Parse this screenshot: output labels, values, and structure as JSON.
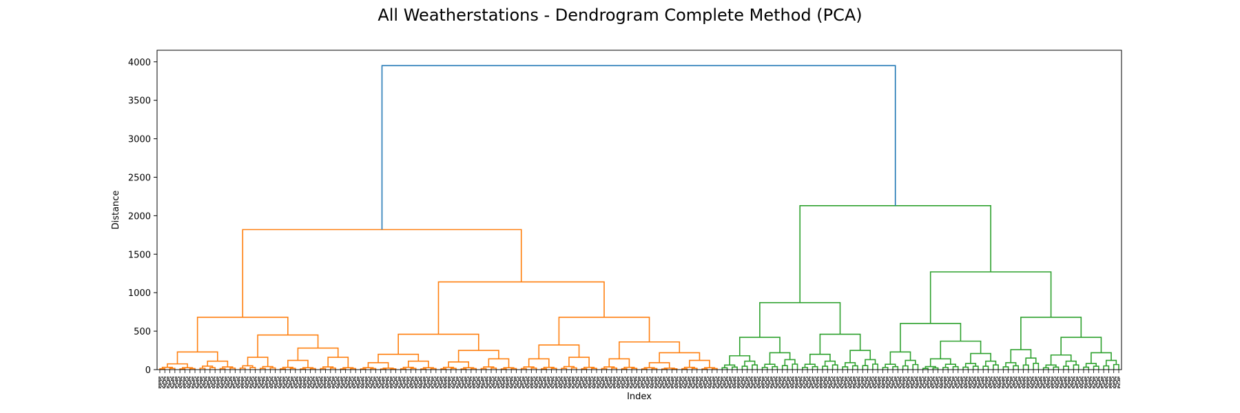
{
  "chart_data": {
    "type": "dendrogram",
    "title": "All Weatherstations - Dendrogram Complete Method (PCA)",
    "xlabel": "Index",
    "ylabel": "Distance",
    "ylim": [
      0,
      4150
    ],
    "yticks": [
      0,
      500,
      1000,
      1500,
      2000,
      2500,
      3000,
      3500,
      4000
    ],
    "grid": false,
    "legend": "none",
    "colors": {
      "root": "#1f77b4",
      "cluster1": "#ff7f0e",
      "cluster2": "#2ca02c"
    },
    "clusters": [
      {
        "name": "cluster1",
        "color": "#ff7f0e",
        "height": 1820,
        "children": [
          {
            "height": 680,
            "children": [
              {
                "height": 230,
                "children": [
                  {
                    "height": 75,
                    "children": [
                      {
                        "height": 30
                      },
                      {
                        "height": 25
                      }
                    ]
                  },
                  {
                    "height": 110,
                    "children": [
                      {
                        "height": 45
                      },
                      {
                        "height": 35
                      }
                    ]
                  }
                ]
              },
              {
                "height": 450,
                "children": [
                  {
                    "height": 160,
                    "children": [
                      {
                        "height": 50
                      },
                      {
                        "height": 40
                      }
                    ]
                  },
                  {
                    "height": 280,
                    "children": [
                      {
                        "height": 120,
                        "children": [
                          {
                            "height": 30
                          },
                          {
                            "height": 25
                          }
                        ]
                      },
                      {
                        "height": 160,
                        "children": [
                          {
                            "height": 35
                          },
                          {
                            "height": 25
                          }
                        ]
                      }
                    ]
                  }
                ]
              }
            ]
          },
          {
            "height": 1140,
            "children": [
              {
                "height": 460,
                "children": [
                  {
                    "height": 200,
                    "children": [
                      {
                        "height": 90,
                        "children": [
                          {
                            "height": 25
                          },
                          {
                            "height": 20
                          }
                        ]
                      },
                      {
                        "height": 110,
                        "children": [
                          {
                            "height": 30
                          },
                          {
                            "height": 25
                          }
                        ]
                      }
                    ]
                  },
                  {
                    "height": 250,
                    "children": [
                      {
                        "height": 100,
                        "children": [
                          {
                            "height": 30
                          },
                          {
                            "height": 25
                          }
                        ]
                      },
                      {
                        "height": 140,
                        "children": [
                          {
                            "height": 35
                          },
                          {
                            "height": 25
                          }
                        ]
                      }
                    ]
                  }
                ]
              },
              {
                "height": 680,
                "children": [
                  {
                    "height": 320,
                    "children": [
                      {
                        "height": 140,
                        "children": [
                          {
                            "height": 35
                          },
                          {
                            "height": 30
                          }
                        ]
                      },
                      {
                        "height": 160,
                        "children": [
                          {
                            "height": 40
                          },
                          {
                            "height": 30
                          }
                        ]
                      }
                    ]
                  },
                  {
                    "height": 360,
                    "children": [
                      {
                        "height": 140,
                        "children": [
                          {
                            "height": 35
                          },
                          {
                            "height": 30
                          }
                        ]
                      },
                      {
                        "height": 220,
                        "children": [
                          {
                            "height": 90,
                            "children": [
                              {
                                "height": 25
                              },
                              {
                                "height": 20
                              }
                            ]
                          },
                          {
                            "height": 120,
                            "children": [
                              {
                                "height": 30
                              },
                              {
                                "height": 25
                              }
                            ]
                          }
                        ]
                      }
                    ]
                  }
                ]
              }
            ]
          }
        ]
      },
      {
        "name": "cluster2",
        "color": "#2ca02c",
        "height": 2130,
        "children": [
          {
            "height": 870,
            "children": [
              {
                "height": 420,
                "children": [
                  {
                    "height": 180,
                    "children": [
                      {
                        "height": 60
                      },
                      {
                        "height": 110
                      }
                    ]
                  },
                  {
                    "height": 220,
                    "children": [
                      {
                        "height": 70
                      },
                      {
                        "height": 130
                      }
                    ]
                  }
                ]
              },
              {
                "height": 460,
                "children": [
                  {
                    "height": 200,
                    "children": [
                      {
                        "height": 70
                      },
                      {
                        "height": 110
                      }
                    ]
                  },
                  {
                    "height": 250,
                    "children": [
                      {
                        "height": 90
                      },
                      {
                        "height": 130
                      }
                    ]
                  }
                ]
              }
            ]
          },
          {
            "height": 1270,
            "children": [
              {
                "height": 600,
                "children": [
                  {
                    "height": 230,
                    "children": [
                      {
                        "height": 70
                      },
                      {
                        "height": 120
                      }
                    ]
                  },
                  {
                    "height": 370,
                    "children": [
                      {
                        "height": 140,
                        "children": [
                          {
                            "height": 40
                          },
                          {
                            "height": 70
                          }
                        ]
                      },
                      {
                        "height": 210,
                        "children": [
                          {
                            "height": 80
                          },
                          {
                            "height": 110
                          }
                        ]
                      }
                    ]
                  }
                ]
              },
              {
                "height": 680,
                "children": [
                  {
                    "height": 260,
                    "children": [
                      {
                        "height": 90
                      },
                      {
                        "height": 150
                      }
                    ]
                  },
                  {
                    "height": 420,
                    "children": [
                      {
                        "height": 190,
                        "children": [
                          {
                            "height": 60
                          },
                          {
                            "height": 110
                          }
                        ]
                      },
                      {
                        "height": 220,
                        "children": [
                          {
                            "height": 80
                          },
                          {
                            "height": 120
                          }
                        ]
                      }
                    ]
                  }
                ]
              }
            ]
          }
        ]
      }
    ],
    "root_height": 3950
  }
}
